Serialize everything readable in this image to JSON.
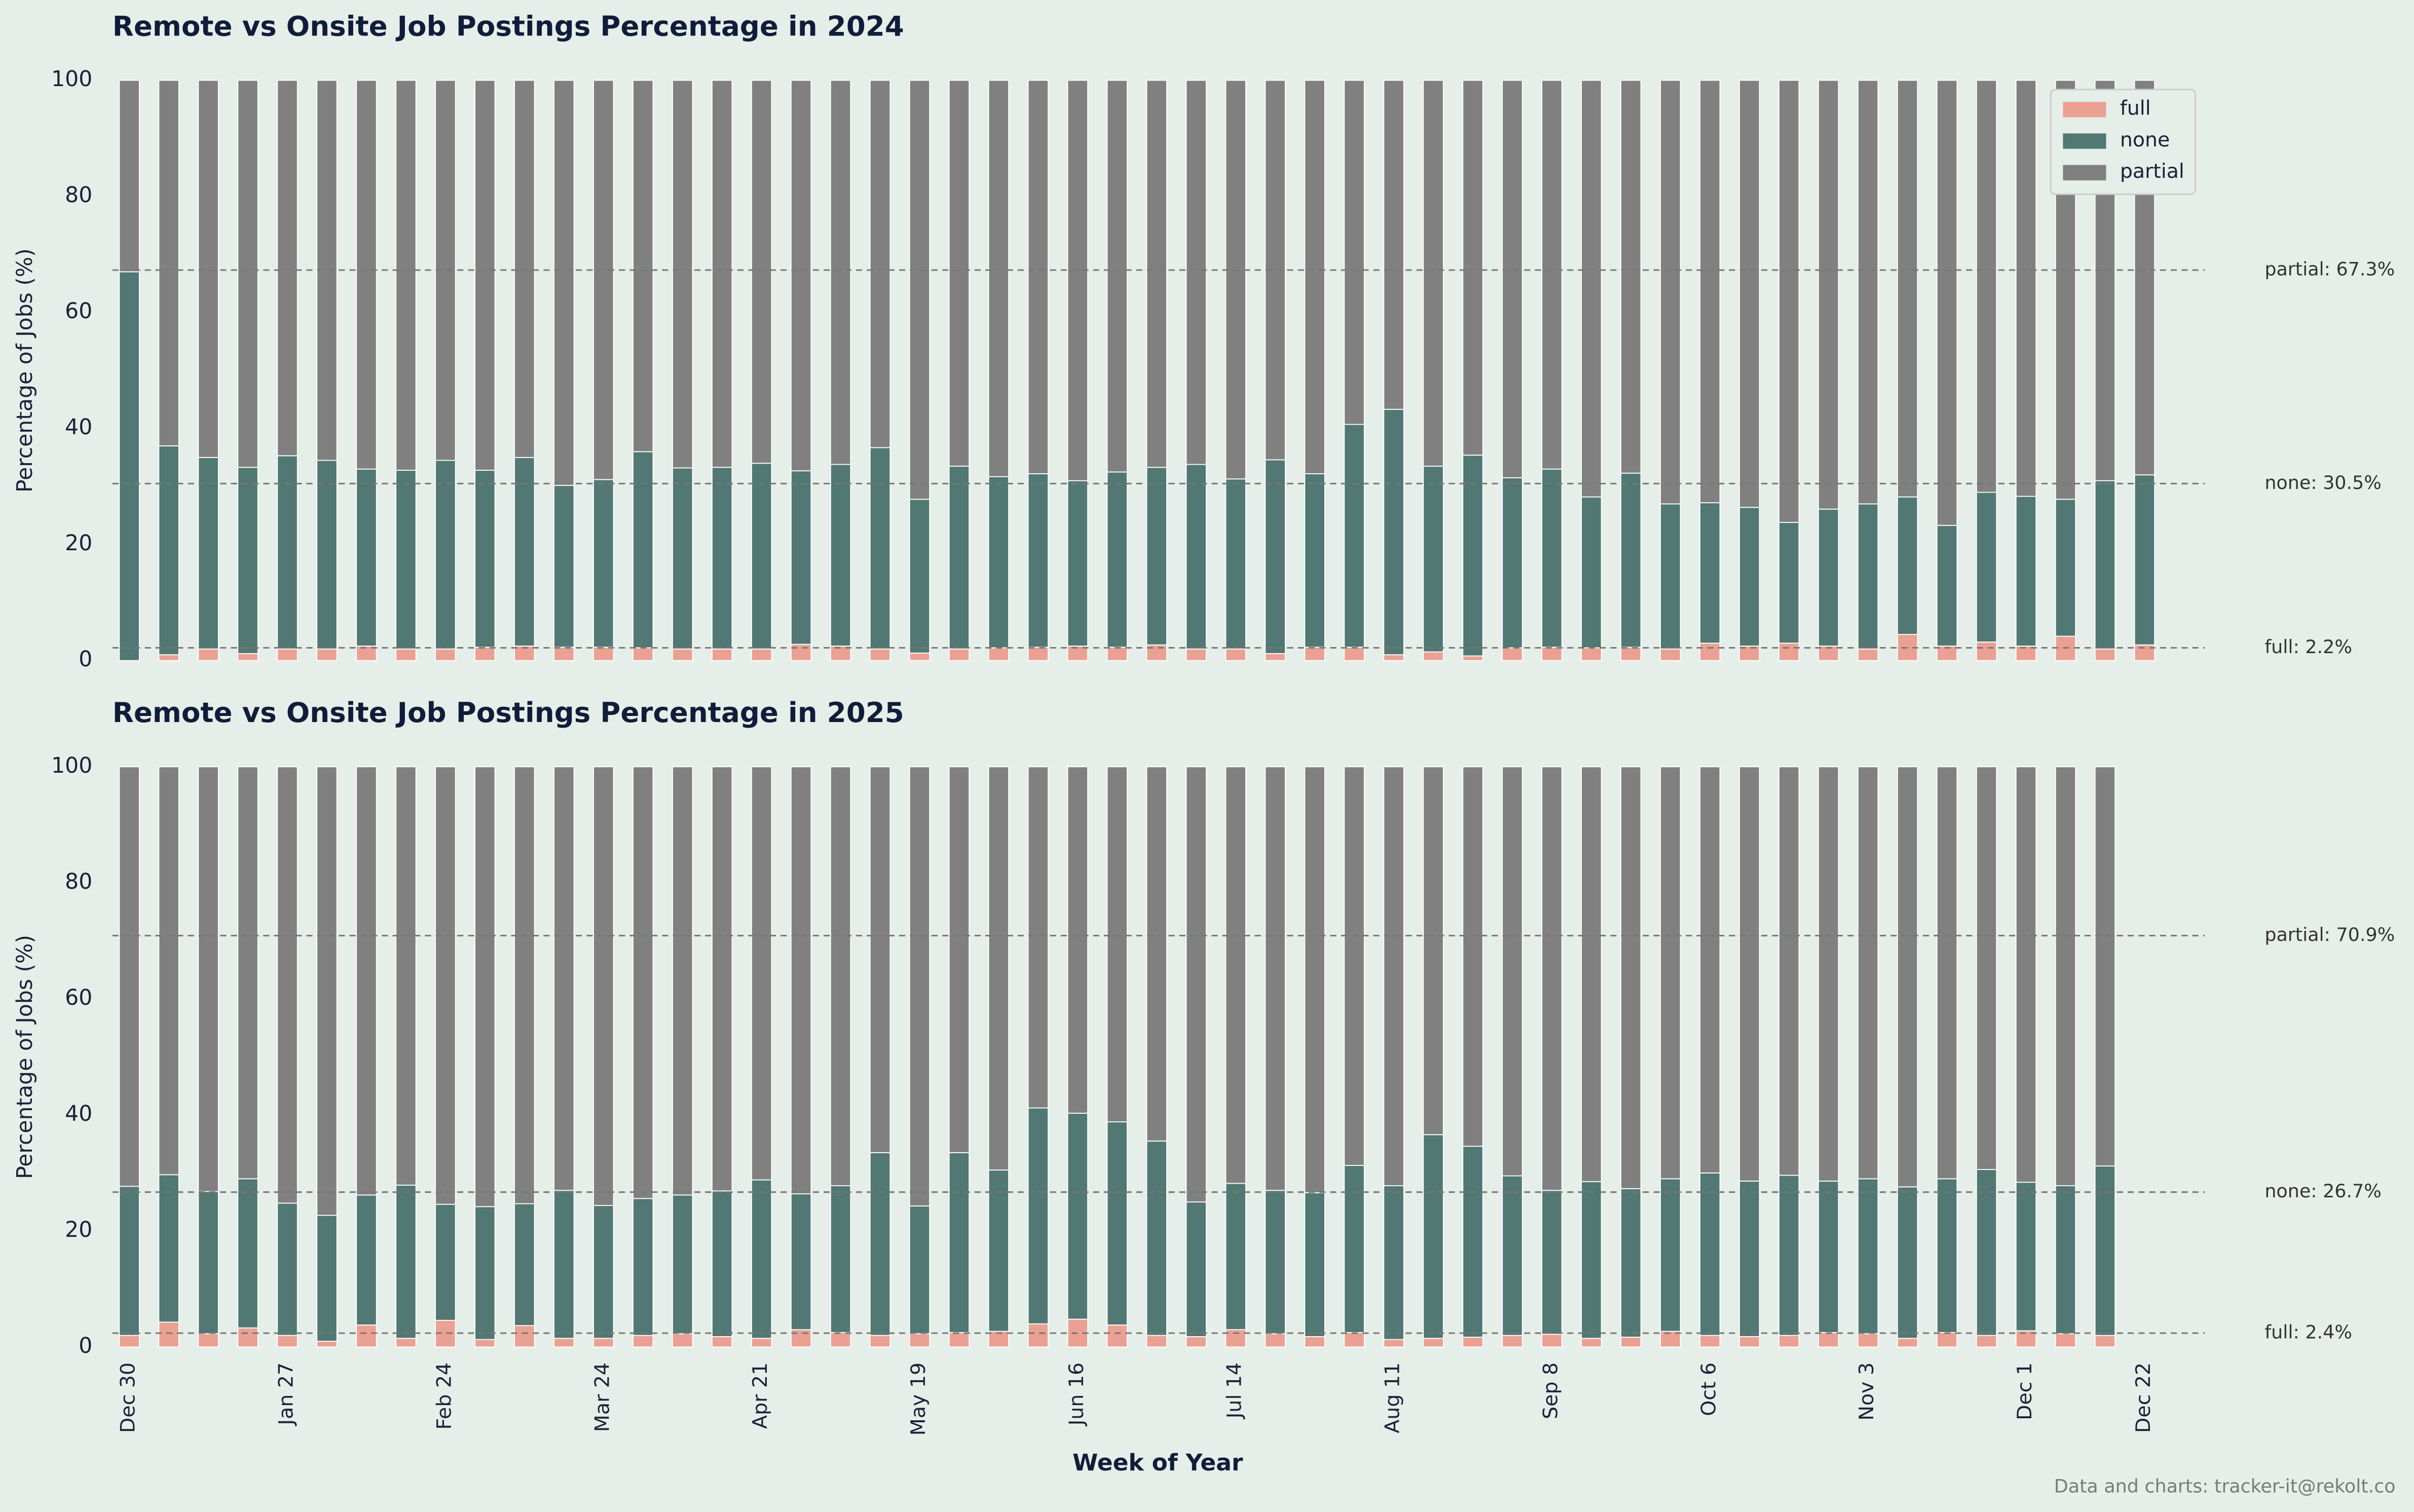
{
  "chart_data": [
    {
      "type": "bar",
      "stacked": true,
      "title": "Remote vs Onsite Job Postings Percentage in 2024",
      "ylabel": "Percentage of Jobs (%)",
      "ylim": [
        0,
        100
      ],
      "yticks": [
        0,
        20,
        40,
        60,
        80,
        100
      ],
      "legend": "upper right",
      "series": [
        {
          "name": "full",
          "color": "#eaa193",
          "values": [
            0,
            1,
            2,
            1.2,
            2,
            2,
            2.5,
            2,
            2,
            2.3,
            2.5,
            2.3,
            2.3,
            2.2,
            2,
            2,
            2,
            2.8,
            2.5,
            2,
            1.3,
            2,
            2.2,
            2.3,
            2.5,
            2.3,
            2.7,
            2,
            2,
            1.2,
            2.3,
            2.3,
            1,
            1.5,
            0.8,
            2.2,
            2.3,
            2.2,
            2.3,
            2,
            3,
            2.5,
            3,
            2.5,
            2,
            4.5,
            2.5,
            3.2,
            2.5,
            4.2,
            2,
            2.7
          ]
        },
        {
          "name": "none",
          "color": "#517872",
          "values": [
            67,
            36,
            33,
            32.1,
            33.3,
            32.5,
            30.5,
            30.8,
            32.5,
            30.5,
            32.5,
            27.9,
            28.9,
            33.8,
            31.2,
            31.3,
            32,
            29.9,
            31.3,
            34.7,
            26.5,
            31.5,
            29.5,
            29.9,
            28.5,
            30.2,
            30.6,
            31.8,
            29.3,
            33.4,
            29.9,
            38.4,
            42.3,
            32,
            34.6,
            29.3,
            30.7,
            26,
            30,
            25,
            24.2,
            23.9,
            20.8,
            23.6,
            25,
            23.7,
            20.8,
            25.8,
            25.8,
            23.6,
            29,
            29.3
          ]
        },
        {
          "name": "partial",
          "color": "#808080",
          "values": [
            33,
            63,
            65,
            66.7,
            64.7,
            65.5,
            67,
            67.2,
            65.5,
            67.2,
            65,
            69.8,
            68.8,
            64,
            66.8,
            66.7,
            66,
            67.3,
            66.2,
            63.3,
            72.2,
            66.5,
            68.3,
            67.8,
            69,
            67.5,
            66.7,
            66.2,
            68.7,
            65.4,
            67.8,
            59.3,
            56.7,
            66.5,
            64.6,
            68.5,
            67,
            71.8,
            67.7,
            73,
            72.8,
            73.6,
            76.2,
            73.9,
            73,
            71.8,
            76.7,
            71,
            71.7,
            72.2,
            69,
            68
          ]
        }
      ],
      "reference_lines": [
        {
          "value": 67.3,
          "label": "partial: 67.3%"
        },
        {
          "value": 30.5,
          "label": "none: 30.5%"
        },
        {
          "value": 2.2,
          "label": "full: 2.2%"
        }
      ]
    },
    {
      "type": "bar",
      "stacked": true,
      "title": "Remote vs Onsite Job Postings Percentage in 2025",
      "ylabel": "Percentage of Jobs (%)",
      "xlabel": "Week of Year",
      "ylim": [
        0,
        100
      ],
      "yticks": [
        0,
        20,
        40,
        60,
        80,
        100
      ],
      "categories": [
        "Dec 30",
        null,
        null,
        null,
        "Jan 27",
        null,
        null,
        null,
        "Feb 24",
        null,
        null,
        null,
        "Mar 24",
        null,
        null,
        null,
        "Apr 21",
        null,
        null,
        null,
        "May 19",
        null,
        null,
        null,
        "Jun 16",
        null,
        null,
        null,
        "Jul 14",
        null,
        null,
        null,
        "Aug 11",
        null,
        null,
        null,
        "Sep 8",
        null,
        null,
        null,
        "Oct 6",
        null,
        null,
        null,
        "Nov 3",
        null,
        null,
        null,
        "Dec 1",
        null,
        null,
        "Dec 22"
      ],
      "series": [
        {
          "color": "#eaa193",
          "values": [
            2,
            4.3,
            2.3,
            3.3,
            2,
            1,
            3.8,
            1.5,
            4.6,
            1.3,
            3.7,
            1.5,
            1.5,
            2,
            2.3,
            1.8,
            1.5,
            3,
            2.5,
            2,
            2.3,
            2.5,
            2.7,
            4,
            4.8,
            3.8,
            2,
            1.8,
            3,
            2.3,
            1.8,
            2.5,
            1.3,
            1.5,
            1.7,
            2,
            2.2,
            1.5,
            1.7,
            2.7,
            2,
            1.8,
            2,
            2.5,
            2.3,
            1.5,
            2.5,
            2,
            2.8,
            2.3,
            2,
            null
          ]
        },
        {
          "color": "#517872",
          "values": [
            25.7,
            25.4,
            24.5,
            25.7,
            22.8,
            21.7,
            22.4,
            26.4,
            20,
            22.9,
            21,
            25.5,
            22.9,
            23.6,
            23.9,
            25.1,
            27.3,
            23.4,
            25.3,
            31.5,
            22,
            31,
            27.8,
            37.2,
            35.5,
            35,
            33.5,
            23.2,
            25.2,
            24.7,
            24.8,
            28.8,
            26.5,
            35.1,
            32.9,
            27.5,
            24.8,
            27,
            25.6,
            26.3,
            28,
            26.8,
            27.6,
            26.1,
            26.7,
            26.1,
            26.5,
            28.6,
            25.6,
            25.5,
            29.2,
            null
          ]
        },
        {
          "color": "#808080",
          "values": [
            72.3,
            70.3,
            73.2,
            71,
            75.2,
            77.3,
            73.8,
            72.1,
            75.4,
            75.8,
            75.3,
            73,
            75.6,
            74.4,
            73.8,
            73.1,
            71.2,
            73.6,
            72.2,
            66.5,
            75.7,
            66.5,
            69.5,
            58.8,
            59.7,
            61.2,
            64.5,
            75,
            71.8,
            73,
            73.4,
            68.7,
            72.2,
            63.4,
            65.4,
            70.5,
            73,
            71.5,
            72.7,
            71,
            70,
            71.4,
            70.4,
            71.4,
            71,
            72.4,
            71,
            69.4,
            71.6,
            72.2,
            68.8,
            null
          ]
        }
      ],
      "reference_lines": [
        {
          "value": 70.9,
          "label": "partial: 70.9%"
        },
        {
          "value": 26.7,
          "label": "none: 26.7%"
        },
        {
          "value": 2.4,
          "label": "full: 2.4%"
        }
      ]
    }
  ],
  "footer": "Data and charts: tracker-it@rekolt.co"
}
